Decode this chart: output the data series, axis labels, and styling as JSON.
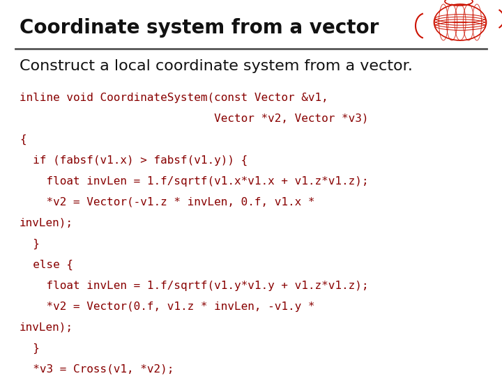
{
  "title": "Coordinate system from a vector",
  "subtitle": "Construct a local coordinate system from a vector.",
  "code_lines": [
    "inline void CoordinateSystem(const Vector &v1,",
    "                             Vector *v2, Vector *v3)",
    "{",
    "  if (fabsf(v1.x) > fabsf(v1.y)) {",
    "    float invLen = 1.f/sqrtf(v1.x*v1.x + v1.z*v1.z);",
    "    *v2 = Vector(-v1.z * invLen, 0.f, v1.x *",
    "invLen);",
    "  }",
    "  else {",
    "    float invLen = 1.f/sqrtf(v1.y*v1.y + v1.z*v1.z);",
    "    *v2 = Vector(0.f, v1.z * invLen, -v1.y *",
    "invLen);",
    "  }",
    "  *v3 = Cross(v1, *v2);",
    "}"
  ],
  "bg_color": "#ffffff",
  "title_color": "#111111",
  "subtitle_color": "#111111",
  "code_color": "#880000",
  "title_fontsize": 20,
  "subtitle_fontsize": 16,
  "code_fontsize": 11.5,
  "divider_color": "#555555",
  "icon_color": "#cc1100"
}
